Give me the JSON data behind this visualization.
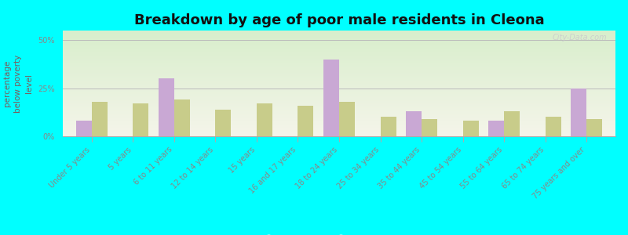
{
  "title": "Breakdown by age of poor male residents in Cleona",
  "ylabel": "percentage\nbelow poverty\nlevel",
  "categories": [
    "Under 5 years",
    "5 years",
    "6 to 11 years",
    "12 to 14 years",
    "15 years",
    "16 and 17 years",
    "18 to 24 years",
    "25 to 34 years",
    "35 to 44 years",
    "45 to 54 years",
    "55 to 64 years",
    "65 to 74 years",
    "75 years and over"
  ],
  "cleona_values": [
    8,
    0,
    30,
    0,
    0,
    0,
    40,
    0,
    13,
    0,
    8,
    0,
    25
  ],
  "pennsylvania_values": [
    18,
    17,
    19,
    14,
    17,
    16,
    18,
    10,
    9,
    8,
    13,
    10,
    9
  ],
  "cleona_color": "#c9a8d4",
  "pennsylvania_color": "#c8cc8a",
  "background_color": "#00ffff",
  "title_fontsize": 13,
  "ylabel_fontsize": 7.5,
  "tick_fontsize": 7,
  "legend_fontsize": 9,
  "ytick_labels": [
    "0%",
    "25%",
    "50%"
  ],
  "ytick_values": [
    0,
    25,
    50
  ],
  "ylim": [
    0,
    55
  ],
  "bar_width": 0.38,
  "watermark": "City-Data.com",
  "ylabel_color": "#7a5c5c",
  "tick_color": "#888888"
}
